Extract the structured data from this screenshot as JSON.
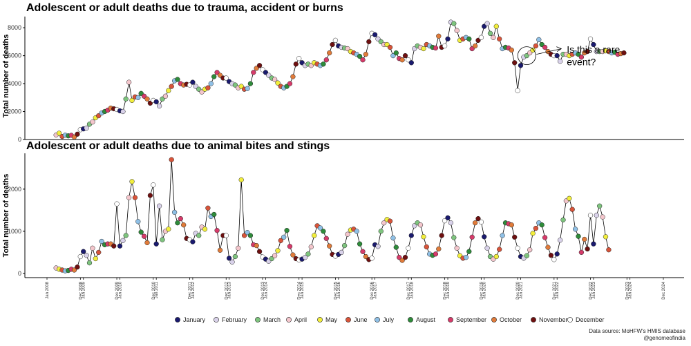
{
  "chart_data": [
    {
      "type": "line",
      "title": "Adolescent or adult deaths due to trauma, accident or burns",
      "ylabel": "Total number of deaths",
      "ylim": [
        0,
        8800
      ],
      "yticks": [
        0,
        2000,
        4000,
        6000,
        8000
      ],
      "start": "2008-04",
      "values": [
        320,
        450,
        220,
        310,
        260,
        300,
        180,
        380,
        700,
        760,
        820,
        1100,
        1250,
        1550,
        1700,
        1900,
        2000,
        2100,
        2250,
        2200,
        2150,
        2050,
        2000,
        2900,
        4100,
        2800,
        3050,
        3000,
        3300,
        3100,
        2900,
        2600,
        2800,
        2700,
        2400,
        2900,
        3100,
        3500,
        3800,
        4200,
        4300,
        4000,
        3900,
        3950,
        3900,
        4100,
        3800,
        3600,
        3400,
        3600,
        3700,
        4000,
        4500,
        4800,
        4600,
        4400,
        4400,
        4150,
        4000,
        3900,
        3700,
        3800,
        3600,
        3650,
        4000,
        4800,
        5100,
        5300,
        5000,
        4800,
        4600,
        4400,
        4300,
        4050,
        3800,
        3700,
        3800,
        4000,
        4500,
        5400,
        5800,
        5500,
        5300,
        5400,
        5300,
        5500,
        5400,
        5300,
        5400,
        5700,
        6200,
        6800,
        7100,
        6700,
        6600,
        6550,
        6500,
        6300,
        6200,
        6100,
        5950,
        5700,
        6100,
        7000,
        7600,
        7500,
        7200,
        7000,
        6800,
        6800,
        6600,
        6000,
        6200,
        5800,
        5700,
        6000,
        5700,
        5500,
        6500,
        6700,
        6600,
        6500,
        6800,
        6700,
        6600,
        6550,
        7400,
        6600,
        6700,
        7200,
        8400,
        8300,
        7800,
        7100,
        7200,
        7300,
        7200,
        6500,
        6700,
        7100,
        7300,
        8100,
        8300,
        7600,
        7300,
        8100,
        7200,
        6500,
        6600,
        6550,
        6400,
        5500,
        3500,
        5300,
        5900,
        6000,
        6200,
        6400,
        6700,
        7150,
        6800,
        6600,
        6300,
        6100,
        6000,
        6000,
        5600,
        6100,
        6100,
        6000,
        6100,
        6200,
        6100,
        5900,
        6200,
        6300,
        7200,
        6800,
        6300,
        6300,
        6300,
        6350,
        6300,
        6200,
        6250,
        6100,
        6150,
        6200
      ],
      "annotation": {
        "text_line1": "Is this a rare",
        "text_line2": "event?",
        "target_index": 155
      }
    },
    {
      "type": "line",
      "title": "Adolescent or adult deaths due to animal bites and stings",
      "ylabel": "Total number of deaths",
      "ylim": [
        -100,
        2850
      ],
      "yticks": [
        0,
        1000,
        2000
      ],
      "start": "2008-04",
      "values": [
        130,
        100,
        80,
        60,
        70,
        100,
        80,
        150,
        400,
        520,
        430,
        250,
        600,
        350,
        500,
        760,
        680,
        700,
        700,
        650,
        1650,
        650,
        780,
        900,
        1800,
        2180,
        1800,
        1230,
        980,
        880,
        730,
        1850,
        2100,
        700,
        1600,
        800,
        1000,
        1050,
        2700,
        1450,
        1200,
        1300,
        1150,
        830,
        800,
        750,
        950,
        900,
        1100,
        1050,
        1550,
        1350,
        1400,
        1020,
        550,
        900,
        900,
        360,
        270,
        400,
        600,
        2220,
        900,
        970,
        900,
        680,
        660,
        520,
        390,
        340,
        290,
        350,
        420,
        540,
        780,
        860,
        1020,
        640,
        440,
        350,
        320,
        340,
        380,
        460,
        630,
        900,
        1130,
        1080,
        1000,
        830,
        650,
        450,
        410,
        450,
        500,
        660,
        930,
        1030,
        1050,
        1000,
        700,
        520,
        400,
        330,
        360,
        680,
        640,
        1000,
        1200,
        1280,
        1240,
        840,
        620,
        380,
        310,
        380,
        600,
        900,
        1130,
        1200,
        1150,
        870,
        630,
        460,
        430,
        460,
        580,
        900,
        1250,
        1320,
        1200,
        850,
        600,
        420,
        360,
        380,
        520,
        860,
        1200,
        1300,
        1220,
        870,
        600,
        400,
        340,
        400,
        570,
        900,
        1200,
        1180,
        1150,
        860,
        600,
        400,
        360,
        420,
        560,
        950,
        1070,
        1200,
        1150,
        850,
        620,
        430,
        330,
        460,
        790,
        1270,
        1720,
        1780,
        1520,
        1050,
        880,
        500,
        810,
        580,
        1380,
        700,
        1380,
        1600,
        1340,
        870,
        560
      ]
    }
  ],
  "xaxis": {
    "ticks": [
      "Jan 2008",
      "Dec 2008",
      "Jan 2009",
      "Dec 2009",
      "Jan 2010",
      "Dec 2010",
      "Jan 2011",
      "Dec 2011",
      "Jan 2012",
      "Dec 2012",
      "Jan 2013",
      "Dec 2013",
      "Jan 2014",
      "Dec 2014",
      "Jan 2015",
      "Dec 2015",
      "Jan 2016",
      "Dec 2016",
      "Jan 2017",
      "Dec 2017",
      "Jan 2018",
      "Dec 2018",
      "Jan 2019",
      "Dec 2019",
      "Jan 2020",
      "Dec 2020",
      "Jan 2021",
      "Dec 2021",
      "Jan 2022",
      "Dec 2022",
      "Jan 2023",
      "Dec 2023",
      "Jan 2024",
      "Dec 2024"
    ]
  },
  "legend": {
    "placement": "bottom",
    "items": [
      {
        "label": "January",
        "color": "#1a1a6e"
      },
      {
        "label": "February",
        "color": "#d9d2ea"
      },
      {
        "label": "March",
        "color": "#7ec47e"
      },
      {
        "label": "April",
        "color": "#f4c6cc"
      },
      {
        "label": "May",
        "color": "#f2ee3c"
      },
      {
        "label": "June",
        "color": "#d8543a"
      },
      {
        "label": "July",
        "color": "#8fc0e6"
      },
      {
        "label": "August",
        "color": "#2e8b3a"
      },
      {
        "label": "September",
        "color": "#d63b6a"
      },
      {
        "label": "October",
        "color": "#e07b3a"
      },
      {
        "label": "November",
        "color": "#6e1010"
      },
      {
        "label": "December",
        "color": "#ffffff"
      }
    ]
  },
  "footer": {
    "source": "Data source: MoHFW's HMIS database",
    "handle": "@genomeofindia"
  }
}
